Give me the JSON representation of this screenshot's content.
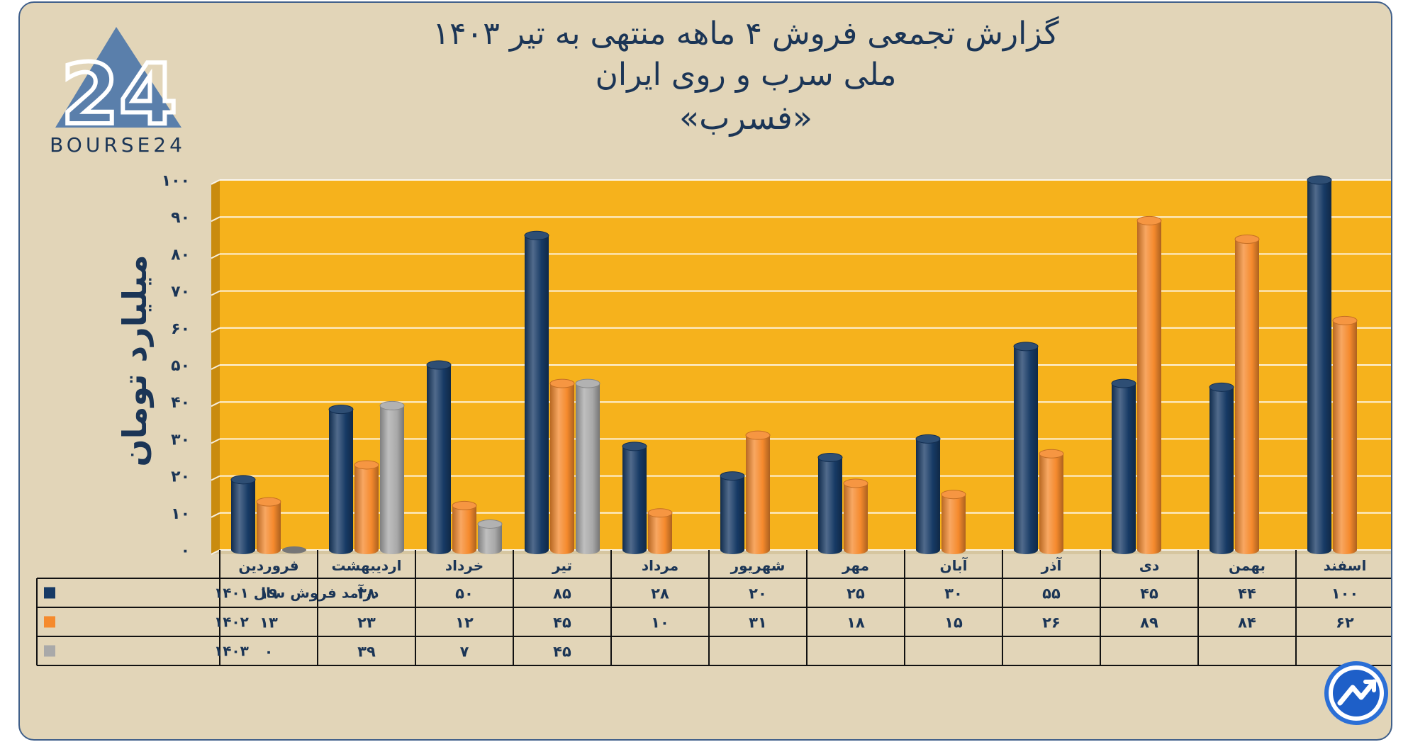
{
  "title_lines": [
    "گزارش تجمعی فروش ۴ ماهه منتهی به تیر ۱۴۰۳",
    "ملی سرب و روی ایران",
    "«فسرب»"
  ],
  "logo": {
    "text": "BOURSE24",
    "mark": "24"
  },
  "colors": {
    "background": "#e2d5b8",
    "plot_area": "#f6b21c",
    "series": [
      "#173a65",
      "#f58a2d",
      "#a9a9a9"
    ],
    "text": "#1b3556"
  },
  "chart_data": {
    "type": "bar",
    "ylabel": "میلیارد تومان",
    "ylim": [
      0,
      100
    ],
    "yticks": [
      0,
      10,
      20,
      30,
      40,
      50,
      60,
      70,
      80,
      90,
      100
    ],
    "ytick_labels": [
      "۰",
      "۱۰",
      "۲۰",
      "۳۰",
      "۴۰",
      "۵۰",
      "۶۰",
      "۷۰",
      "۸۰",
      "۹۰",
      "۱۰۰"
    ],
    "categories": [
      "فروردین",
      "اردیبهشت",
      "خرداد",
      "تیر",
      "مرداد",
      "شهریور",
      "مهر",
      "آبان",
      "آذر",
      "دی",
      "بهمن",
      "اسفند"
    ],
    "series": [
      {
        "name": "درآمد فروش سال ۱۴۰۱",
        "values": [
          19,
          38,
          50,
          85,
          28,
          20,
          25,
          30,
          55,
          45,
          44,
          100
        ],
        "labels": [
          "۱۹",
          "۳۸",
          "۵۰",
          "۸۵",
          "۲۸",
          "۲۰",
          "۲۵",
          "۳۰",
          "۵۵",
          "۴۵",
          "۴۴",
          "۱۰۰"
        ]
      },
      {
        "name": "۱۴۰۲",
        "values": [
          13,
          23,
          12,
          45,
          10,
          31,
          18,
          15,
          26,
          89,
          84,
          62
        ],
        "labels": [
          "۱۳",
          "۲۳",
          "۱۲",
          "۴۵",
          "۱۰",
          "۳۱",
          "۱۸",
          "۱۵",
          "۲۶",
          "۸۹",
          "۸۴",
          "۶۲"
        ]
      },
      {
        "name": "۱۴۰۳",
        "values": [
          0,
          39,
          7,
          45,
          null,
          null,
          null,
          null,
          null,
          null,
          null,
          null
        ],
        "labels": [
          "۰",
          "۳۹",
          "۷",
          "۴۵",
          "",
          "",
          "",
          "",
          "",
          "",
          "",
          ""
        ]
      }
    ],
    "grid": true,
    "legend": "table-below"
  }
}
